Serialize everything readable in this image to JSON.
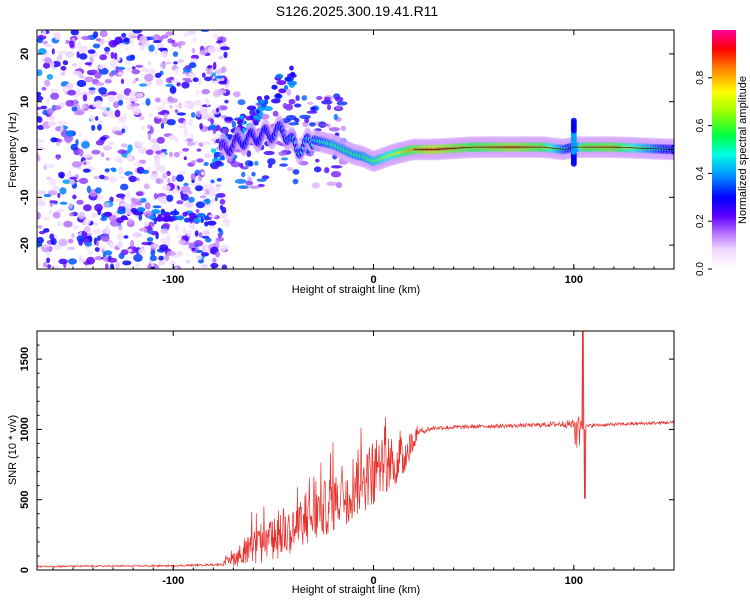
{
  "title": "S126.2025.300.19.41.R11",
  "chart_data": [
    {
      "type": "heatmap",
      "name": "spectrogram",
      "xlabel": "Height of straight line (km)",
      "ylabel": "Frequency (Hz)",
      "xlim": [
        -168,
        150
      ],
      "ylim": [
        -25,
        25
      ],
      "x_ticks": [
        -100,
        0,
        100
      ],
      "x_tick_labels": [
        "-100",
        "0",
        "100"
      ],
      "y_ticks": [
        -20,
        -10,
        0,
        10,
        20
      ],
      "y_tick_labels": [
        "-20",
        "-10",
        "0",
        "10",
        "20"
      ],
      "colorbar": {
        "label": "Normalized spectral amplitude",
        "range": [
          0,
          1
        ],
        "ticks": [
          0,
          0.2,
          0.4,
          0.6,
          0.8
        ],
        "tick_labels": [
          "0.0",
          "0.2",
          "0.4",
          "0.6",
          "0.8"
        ]
      },
      "ridge": {
        "x": [
          -75,
          -65,
          -55,
          -45,
          -38,
          -30,
          -20,
          -10,
          -5,
          0,
          10,
          20,
          30,
          50,
          70,
          85,
          95,
          100,
          105,
          120,
          150
        ],
        "freq": [
          0,
          2,
          3,
          4,
          0,
          2,
          1,
          -1,
          -1.5,
          -2.5,
          -1,
          0,
          0,
          0.5,
          0.5,
          0.5,
          0,
          0.5,
          0.5,
          0.5,
          0
        ],
        "amplitude": [
          0.2,
          0.3,
          0.3,
          0.35,
          0.4,
          0.45,
          0.55,
          0.55,
          0.55,
          0.6,
          0.7,
          0.85,
          0.95,
          0.8,
          0.9,
          0.8,
          0.5,
          0.35,
          0.8,
          0.85,
          0.35
        ]
      }
    },
    {
      "type": "line",
      "name": "snr",
      "xlabel": "Height of straight line (km)",
      "ylabel": "SNR (10 * v/v)",
      "xlim": [
        -168,
        150
      ],
      "ylim": [
        0,
        1700
      ],
      "x_ticks": [
        -100,
        0,
        100
      ],
      "x_tick_labels": [
        "-100",
        "0",
        "100"
      ],
      "y_ticks": [
        0,
        500,
        1000,
        1500
      ],
      "y_tick_labels": [
        "0",
        "500",
        "1000",
        "1500"
      ],
      "color": "#e8302c",
      "profile": {
        "x": [
          -168,
          -100,
          -75,
          -65,
          -55,
          -45,
          -35,
          -25,
          -15,
          -5,
          5,
          15,
          22,
          30,
          50,
          80,
          95,
          103,
          106,
          110,
          150
        ],
        "baseline": [
          25,
          30,
          40,
          120,
          180,
          250,
          320,
          430,
          550,
          650,
          720,
          800,
          980,
          1010,
          1020,
          1030,
          1040,
          1030,
          1020,
          1030,
          1050
        ],
        "spread": [
          15,
          15,
          20,
          120,
          180,
          200,
          200,
          250,
          300,
          300,
          250,
          200,
          60,
          40,
          35,
          35,
          60,
          120,
          40,
          30,
          30
        ]
      },
      "features": [
        {
          "x": 104.5,
          "y": 1700
        },
        {
          "x": 105.5,
          "y": 510
        }
      ]
    }
  ]
}
